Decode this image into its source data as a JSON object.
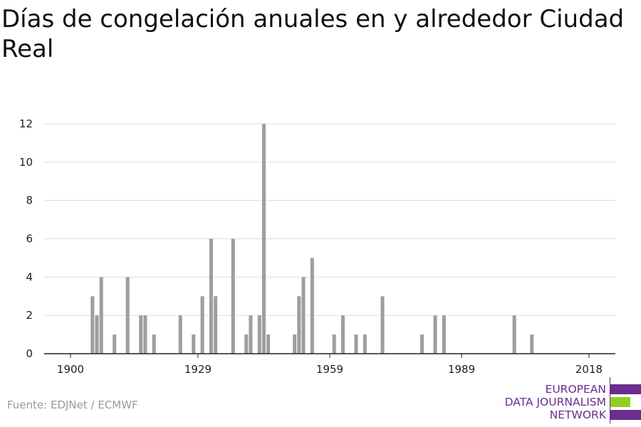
{
  "page": {
    "title": "Días de congelación anuales en y alrededor Ciudad Real",
    "source": "Fuente: EDJNet / ECMWF"
  },
  "logo": {
    "line1": "EUROPEAN",
    "line2": "DATA JOURNALISM",
    "line3": "NETWORK",
    "colors": {
      "purple": "#6b2d8e",
      "green": "#8fd022"
    }
  },
  "chart_data": {
    "type": "bar",
    "title": "Días de congelación anuales en y alrededor Ciudad Real",
    "xlabel": "",
    "ylabel": "",
    "xlim": [
      1894,
      2024
    ],
    "ylim": [
      0,
      12
    ],
    "x_ticks": [
      1900,
      1929,
      1959,
      1989,
      2018
    ],
    "y_ticks": [
      0,
      2,
      4,
      6,
      8,
      10,
      12
    ],
    "grid": true,
    "bar_color": "#9e9e9e",
    "x": [
      1905,
      1906,
      1907,
      1910,
      1913,
      1916,
      1917,
      1919,
      1925,
      1928,
      1930,
      1932,
      1933,
      1937,
      1940,
      1941,
      1943,
      1944,
      1945,
      1951,
      1952,
      1953,
      1955,
      1960,
      1962,
      1965,
      1967,
      1971,
      1980,
      1983,
      1985,
      2001,
      2005
    ],
    "values": [
      3,
      2,
      4,
      1,
      4,
      2,
      2,
      1,
      2,
      1,
      3,
      6,
      3,
      6,
      1,
      2,
      2,
      12,
      1,
      1,
      3,
      4,
      5,
      1,
      2,
      1,
      1,
      3,
      1,
      2,
      2,
      2,
      1
    ]
  }
}
